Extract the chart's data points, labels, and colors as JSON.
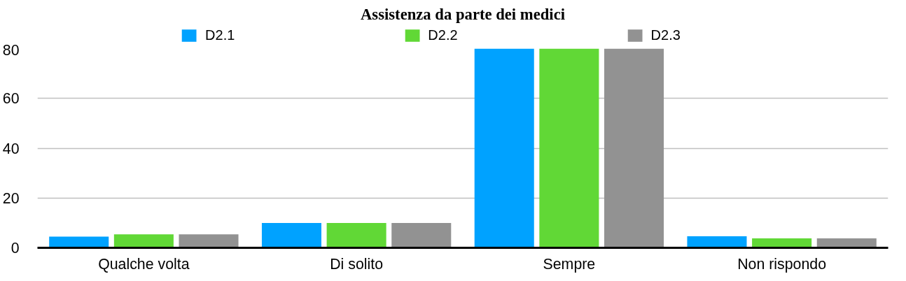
{
  "chart_data": {
    "type": "bar",
    "title": "Assistenza da parte dei medici",
    "categories": [
      "Qualche volta",
      "Di solito",
      "Sempre",
      "Non rispondo"
    ],
    "series": [
      {
        "name": "D2.1",
        "color": "#00a2ff",
        "values": [
          4.5,
          10,
          80,
          4.6
        ]
      },
      {
        "name": "D2.2",
        "color": "#61d836",
        "values": [
          5.4,
          10,
          80,
          3.8
        ]
      },
      {
        "name": "D2.3",
        "color": "#929292",
        "values": [
          5.4,
          10,
          80,
          3.8
        ]
      }
    ],
    "ylim": [
      0,
      80
    ],
    "yticks": [
      0,
      20,
      40,
      60,
      80
    ],
    "grid": "y",
    "legend": "top"
  }
}
